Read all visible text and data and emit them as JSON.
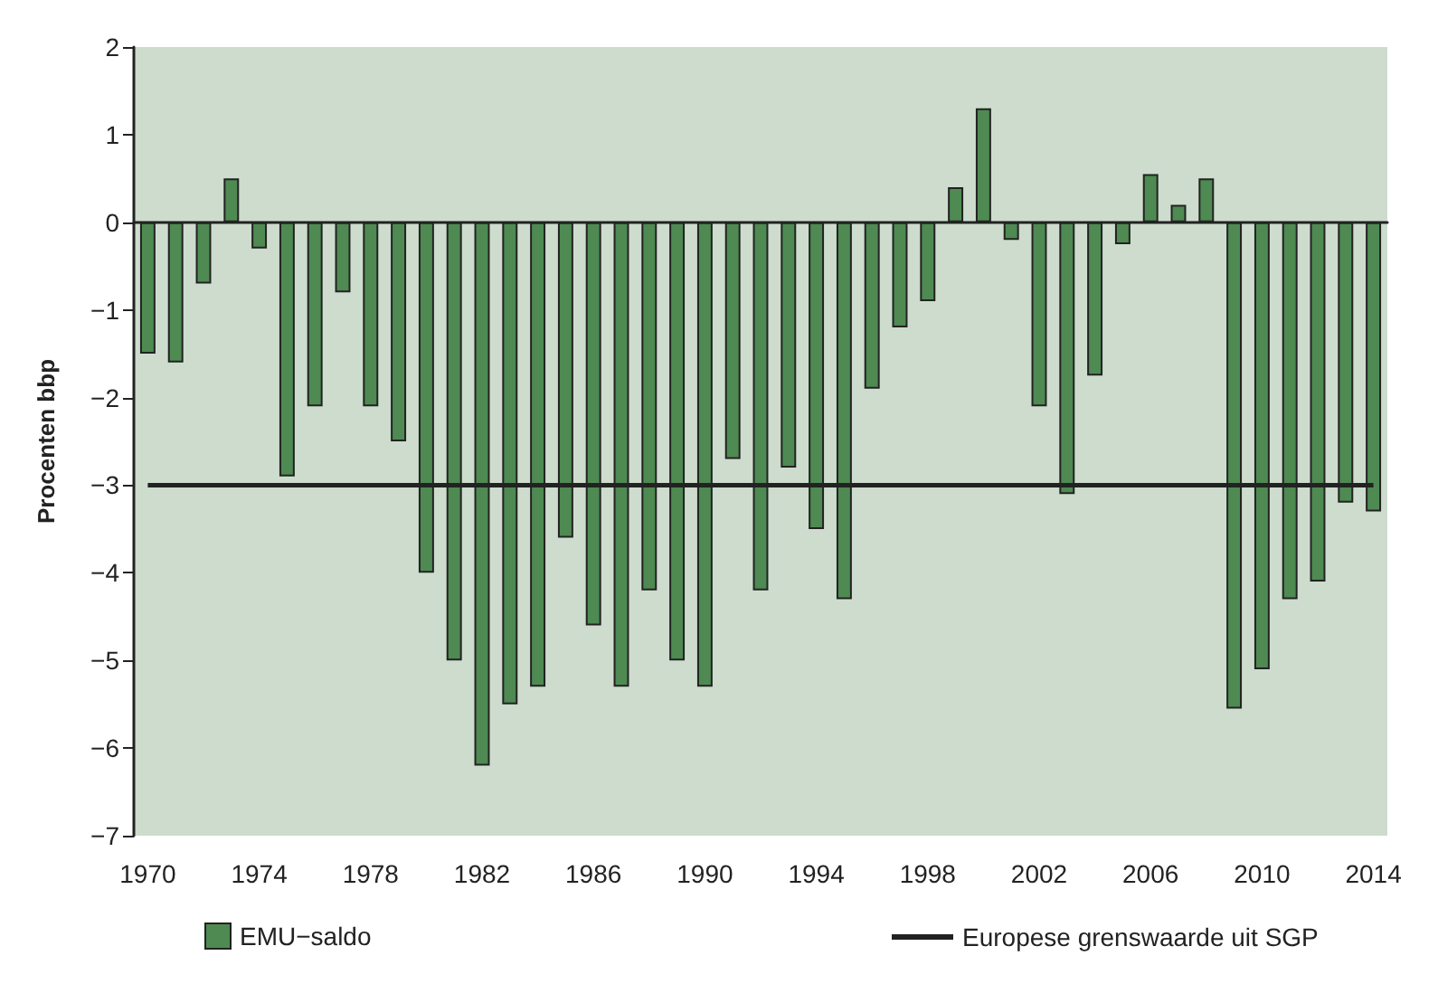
{
  "chart_data": {
    "type": "bar",
    "ylabel": "Procenten bbp",
    "categories": [
      "1970",
      null,
      null,
      null,
      "1974",
      null,
      null,
      null,
      "1978",
      null,
      null,
      null,
      "1982",
      null,
      null,
      null,
      "1986",
      null,
      null,
      null,
      "1990",
      null,
      null,
      null,
      "1994",
      null,
      null,
      null,
      "1998",
      null,
      null,
      null,
      "2002",
      null,
      null,
      null,
      "2006",
      null,
      null,
      null,
      "2010",
      null,
      null,
      null,
      "2014"
    ],
    "series": [
      {
        "name": "EMU−saldo",
        "color": "#4e8a52",
        "values": [
          -1.5,
          -1.6,
          -0.7,
          0.5,
          -0.3,
          -2.9,
          -2.1,
          -0.8,
          -2.1,
          -2.5,
          -4.0,
          -5.0,
          -6.2,
          -5.5,
          -5.3,
          -3.6,
          -4.6,
          -5.3,
          -4.2,
          -5.0,
          -5.3,
          -2.7,
          -4.2,
          -2.8,
          -3.5,
          -4.3,
          -1.9,
          -1.2,
          -0.9,
          0.4,
          1.3,
          -0.2,
          -2.1,
          -3.1,
          -1.75,
          -0.25,
          0.55,
          0.2,
          0.5,
          -5.55,
          -5.1,
          -4.3,
          -4.1,
          -3.2,
          -3.3
        ]
      },
      {
        "name": "Europese grenswaarde uit SGP",
        "type": "line",
        "color": "#222222",
        "values": [
          -3,
          -3,
          -3,
          -3,
          -3,
          -3,
          -3,
          -3,
          -3,
          -3,
          -3,
          -3,
          -3,
          -3,
          -3,
          -3,
          -3,
          -3,
          -3,
          -3,
          -3,
          -3,
          -3,
          -3,
          -3,
          -3,
          -3,
          -3,
          -3,
          -3,
          -3,
          -3,
          -3,
          -3,
          -3,
          -3,
          -3,
          -3,
          -3,
          -3,
          -3,
          -3,
          -3,
          -3,
          -3
        ]
      }
    ],
    "ylim": [
      -7,
      2
    ],
    "yticks": [
      -7,
      -6,
      -5,
      -4,
      -3,
      -2,
      -1,
      0,
      1,
      2
    ],
    "grid": false,
    "legend": "bottom"
  }
}
